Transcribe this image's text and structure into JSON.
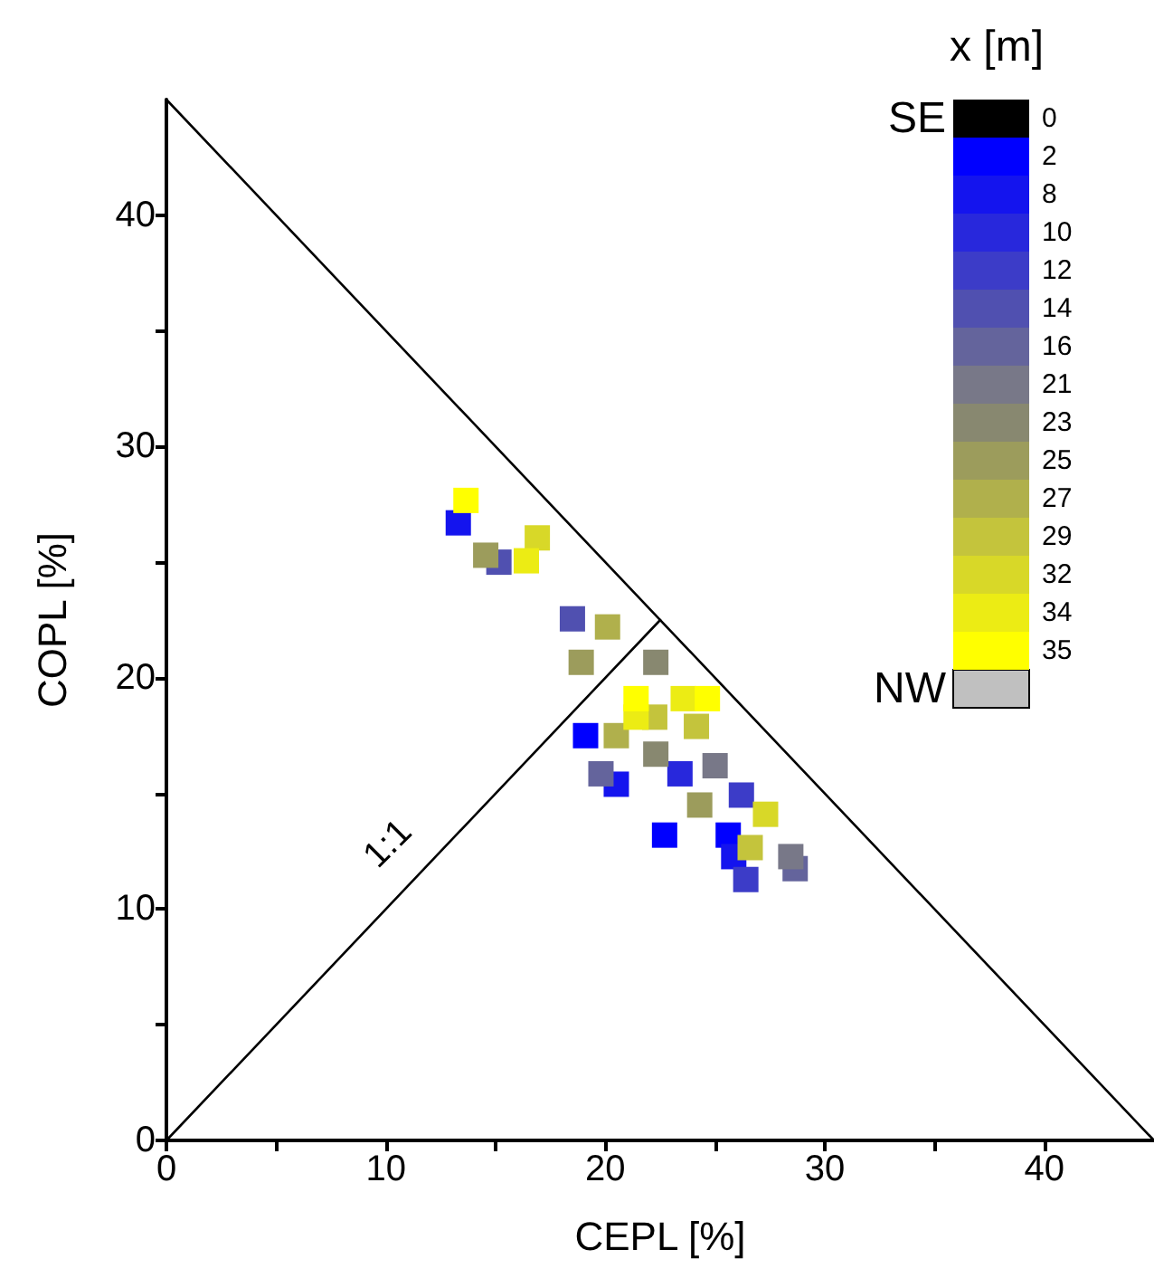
{
  "chart_data": {
    "type": "scatter",
    "xlabel": "CEPL [%]",
    "ylabel": "COPL [%]",
    "legend_title": "x [m]",
    "annotations": [
      "SE",
      "NW",
      "1:1"
    ],
    "xlim": [
      0,
      45
    ],
    "ylim": [
      0,
      45
    ],
    "xticks": [
      0,
      {
        "value": 5,
        "label": null
      },
      10,
      {
        "value": 15,
        "label": null
      },
      20,
      {
        "value": 25,
        "label": null
      },
      30,
      {
        "value": 35,
        "label": null
      },
      40
    ],
    "yticks": [
      0,
      {
        "value": 5,
        "label": null
      },
      10,
      {
        "value": 15,
        "label": null
      },
      20,
      {
        "value": 25,
        "label": null
      },
      30,
      {
        "value": 35,
        "label": null
      },
      40
    ],
    "grid": false,
    "legend": "top right",
    "marker": "square",
    "series": [
      {
        "name": "0",
        "color": "#000000"
      },
      {
        "name": "2",
        "color": "#0000ff",
        "x": [
          19.1,
          22.7,
          25.6
        ],
        "values": [
          17.5,
          13.2,
          13.2
        ]
      },
      {
        "name": "8",
        "color": "#1414ee",
        "x": [
          13.3,
          20.5,
          25.85
        ],
        "values": [
          26.7,
          15.4,
          12.27
        ]
      },
      {
        "name": "10",
        "color": "#2828dc",
        "x": [
          23.4
        ],
        "values": [
          15.85
        ]
      },
      {
        "name": "12",
        "color": "#3c3cc8",
        "x": [
          26.2,
          26.4
        ],
        "values": [
          14.93,
          11.28
        ]
      },
      {
        "name": "14",
        "color": "#5050b0",
        "x": [
          15.15,
          18.5
        ],
        "values": [
          25.0,
          22.55
        ]
      },
      {
        "name": "16",
        "color": "#64649c",
        "x": [
          19.8,
          28.65
        ],
        "values": [
          15.85,
          11.75
        ]
      },
      {
        "name": "21",
        "color": "#787888",
        "x": [
          25.0,
          28.45
        ],
        "values": [
          16.2,
          12.27
        ]
      },
      {
        "name": "23",
        "color": "#888870",
        "x": [
          22.3,
          22.3
        ],
        "values": [
          20.67,
          16.7
        ]
      },
      {
        "name": "25",
        "color": "#9c9c5c",
        "x": [
          14.55,
          18.9,
          24.3
        ],
        "values": [
          25.3,
          20.67,
          14.5
        ]
      },
      {
        "name": "27",
        "color": "#b0b04c",
        "x": [
          20.1,
          20.5
        ],
        "values": [
          22.2,
          17.5
        ]
      },
      {
        "name": "29",
        "color": "#c4c43c",
        "x": [
          22.25,
          24.15,
          26.6
        ],
        "values": [
          18.3,
          17.9,
          12.66
        ]
      },
      {
        "name": "32",
        "color": "#d8d828",
        "x": [
          16.9,
          27.3
        ],
        "values": [
          26.05,
          14.1
        ]
      },
      {
        "name": "34",
        "color": "#ecec14",
        "x": [
          16.4,
          23.55,
          21.4
        ],
        "values": [
          25.06,
          19.1,
          18.3
        ]
      },
      {
        "name": "35",
        "color": "#ffff00",
        "x": [
          13.65,
          21.4,
          24.65
        ],
        "values": [
          27.67,
          19.1,
          19.1
        ]
      },
      {
        "type": "line",
        "marker": "none",
        "color": "#000000",
        "x": [
          0,
          45
        ],
        "values": [
          45,
          0
        ]
      },
      {
        "type": "line",
        "marker": "none",
        "color": "#000000",
        "x": [
          0,
          22.5
        ],
        "values": [
          0,
          22.5
        ]
      }
    ]
  }
}
